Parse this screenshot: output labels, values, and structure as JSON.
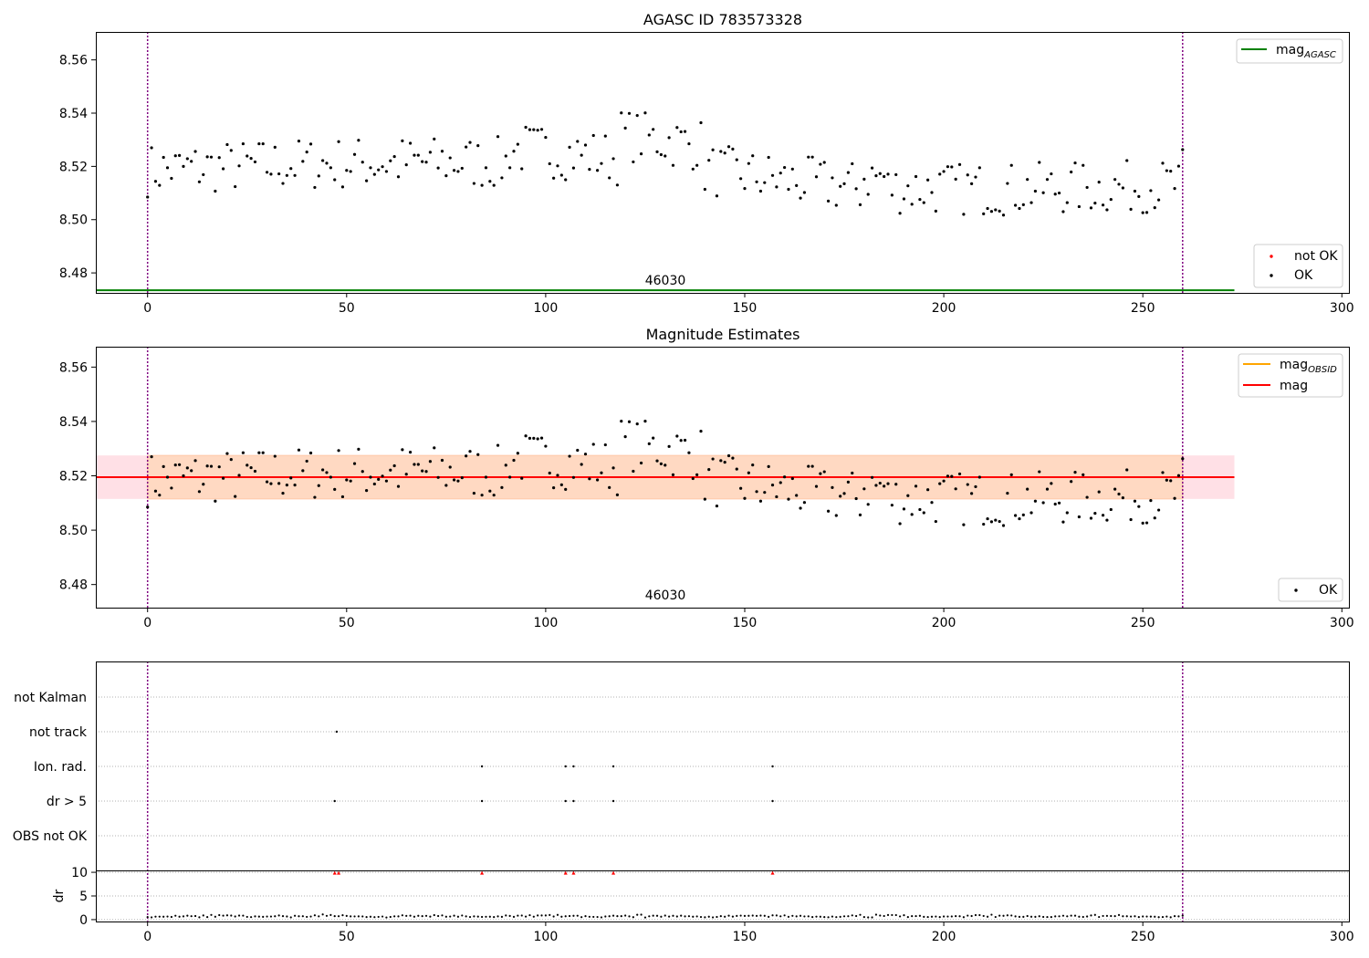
{
  "chart_data": [
    {
      "type": "scatter",
      "title": "AGASC ID 783573328",
      "xlim": [
        -13,
        302
      ],
      "ylim": [
        8.4725,
        8.5705
      ],
      "xticks": [
        0,
        50,
        100,
        150,
        200,
        250,
        300
      ],
      "yticks": [
        8.48,
        8.5,
        8.52,
        8.54,
        8.56
      ],
      "ytick_labels": [
        "8.48",
        "8.50",
        "8.52",
        "8.54",
        "8.56"
      ],
      "obsid_label": "46030",
      "obsid_bounds": [
        0,
        260
      ],
      "mag_agasc": 8.4735,
      "mag_agasc_range": [
        -13,
        273
      ],
      "legend_top": {
        "location": "upper right",
        "label": "mag",
        "sub": "AGASC",
        "color": "#008000"
      },
      "legend_bottom": {
        "location": "lower right",
        "entries": [
          {
            "label": "not OK",
            "color": "#ff0000"
          },
          {
            "label": "OK",
            "color": "#000000"
          }
        ]
      },
      "grid": false
    },
    {
      "type": "scatter",
      "title": "Magnitude Estimates",
      "xlim": [
        -13,
        302
      ],
      "ylim": [
        8.4715,
        8.5675
      ],
      "xticks": [
        0,
        50,
        100,
        150,
        200,
        250,
        300
      ],
      "yticks": [
        8.48,
        8.5,
        8.52,
        8.54,
        8.56
      ],
      "ytick_labels": [
        "8.48",
        "8.50",
        "8.52",
        "8.54",
        "8.56"
      ],
      "obsid_label": "46030",
      "obsid_bounds": [
        0,
        260
      ],
      "mag": 8.5195,
      "mag_obsid": 8.5195,
      "band_outer": {
        "x": [
          -13,
          273
        ],
        "y": [
          8.5115,
          8.5275
        ],
        "color": "#ffe0e6"
      },
      "band_inner": {
        "x": [
          0,
          260
        ],
        "y": [
          8.5115,
          8.5275
        ],
        "color": "#ffd9c2"
      },
      "legend_top": {
        "location": "upper right",
        "entries": [
          {
            "label": "mag",
            "sub": "OBSID",
            "color": "#ffa500"
          },
          {
            "label": "mag",
            "sub": "",
            "color": "#ff0000"
          }
        ]
      },
      "legend_bottom": {
        "location": "lower right",
        "entries": [
          {
            "label": "OK",
            "color": "#000000"
          }
        ]
      },
      "grid": false
    },
    {
      "type": "scatter",
      "title": "",
      "xlim": [
        -13,
        302
      ],
      "xticks": [
        0,
        50,
        100,
        150,
        200,
        250,
        300
      ],
      "flag_categories": [
        "not Kalman",
        "not track",
        "Ion. rad.",
        "dr > 5",
        "OBS not OK"
      ],
      "flags": {
        "not track": [
          47.5
        ],
        "Ion. rad.": [
          84,
          105,
          107,
          117,
          157
        ],
        "dr > 5": [
          47,
          84,
          105,
          107,
          117,
          157
        ]
      },
      "dr_ylabel": "dr",
      "dr_ylim": [
        -0.4,
        10.4
      ],
      "dr_yticks": [
        0,
        5,
        10
      ],
      "dr_ytick_labels": [
        "0",
        "5",
        "10"
      ],
      "dr_high_markers": [
        47,
        48,
        84,
        105,
        107,
        117,
        157
      ],
      "obsid_bounds": [
        0,
        260
      ],
      "grid": true
    }
  ]
}
